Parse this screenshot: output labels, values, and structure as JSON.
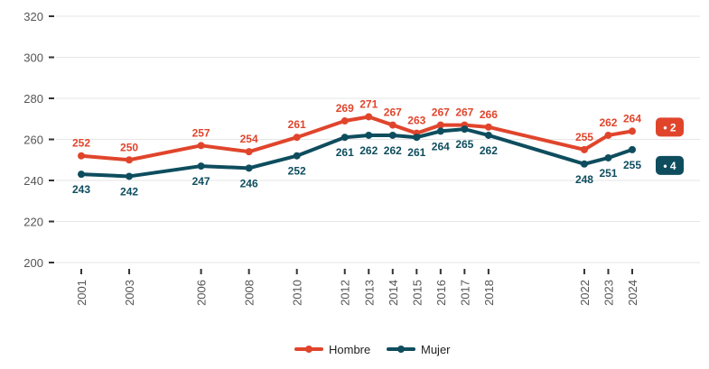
{
  "chart_data": {
    "type": "line",
    "x": [
      2001,
      2003,
      2006,
      2008,
      2010,
      2012,
      2013,
      2014,
      2015,
      2016,
      2017,
      2018,
      2022,
      2023,
      2024
    ],
    "x_tick_labels": [
      "2001",
      "2003",
      "2006",
      "2008",
      "2010",
      "2012",
      "2013",
      "2014",
      "2015",
      "2016",
      "2017",
      "2018",
      "2022",
      "2023",
      "2024"
    ],
    "series": [
      {
        "name": "Hombre",
        "color": "#E0452C",
        "values": [
          252,
          250,
          257,
          254,
          261,
          269,
          271,
          267,
          263,
          267,
          267,
          266,
          255,
          262,
          264
        ],
        "badge": "• 2"
      },
      {
        "name": "Mujer",
        "color": "#0E4D5E",
        "values": [
          243,
          242,
          247,
          246,
          252,
          261,
          262,
          262,
          261,
          264,
          265,
          262,
          248,
          251,
          255
        ],
        "badge": "• 4"
      }
    ],
    "y_ticks": [
      200,
      220,
      240,
      260,
      280,
      300,
      320
    ],
    "ylim": [
      200,
      320
    ],
    "xlim": [
      2000.9,
      2024.3
    ],
    "title": "",
    "xlabel": "",
    "ylabel": "",
    "grid": true,
    "legend_position": "bottom"
  }
}
